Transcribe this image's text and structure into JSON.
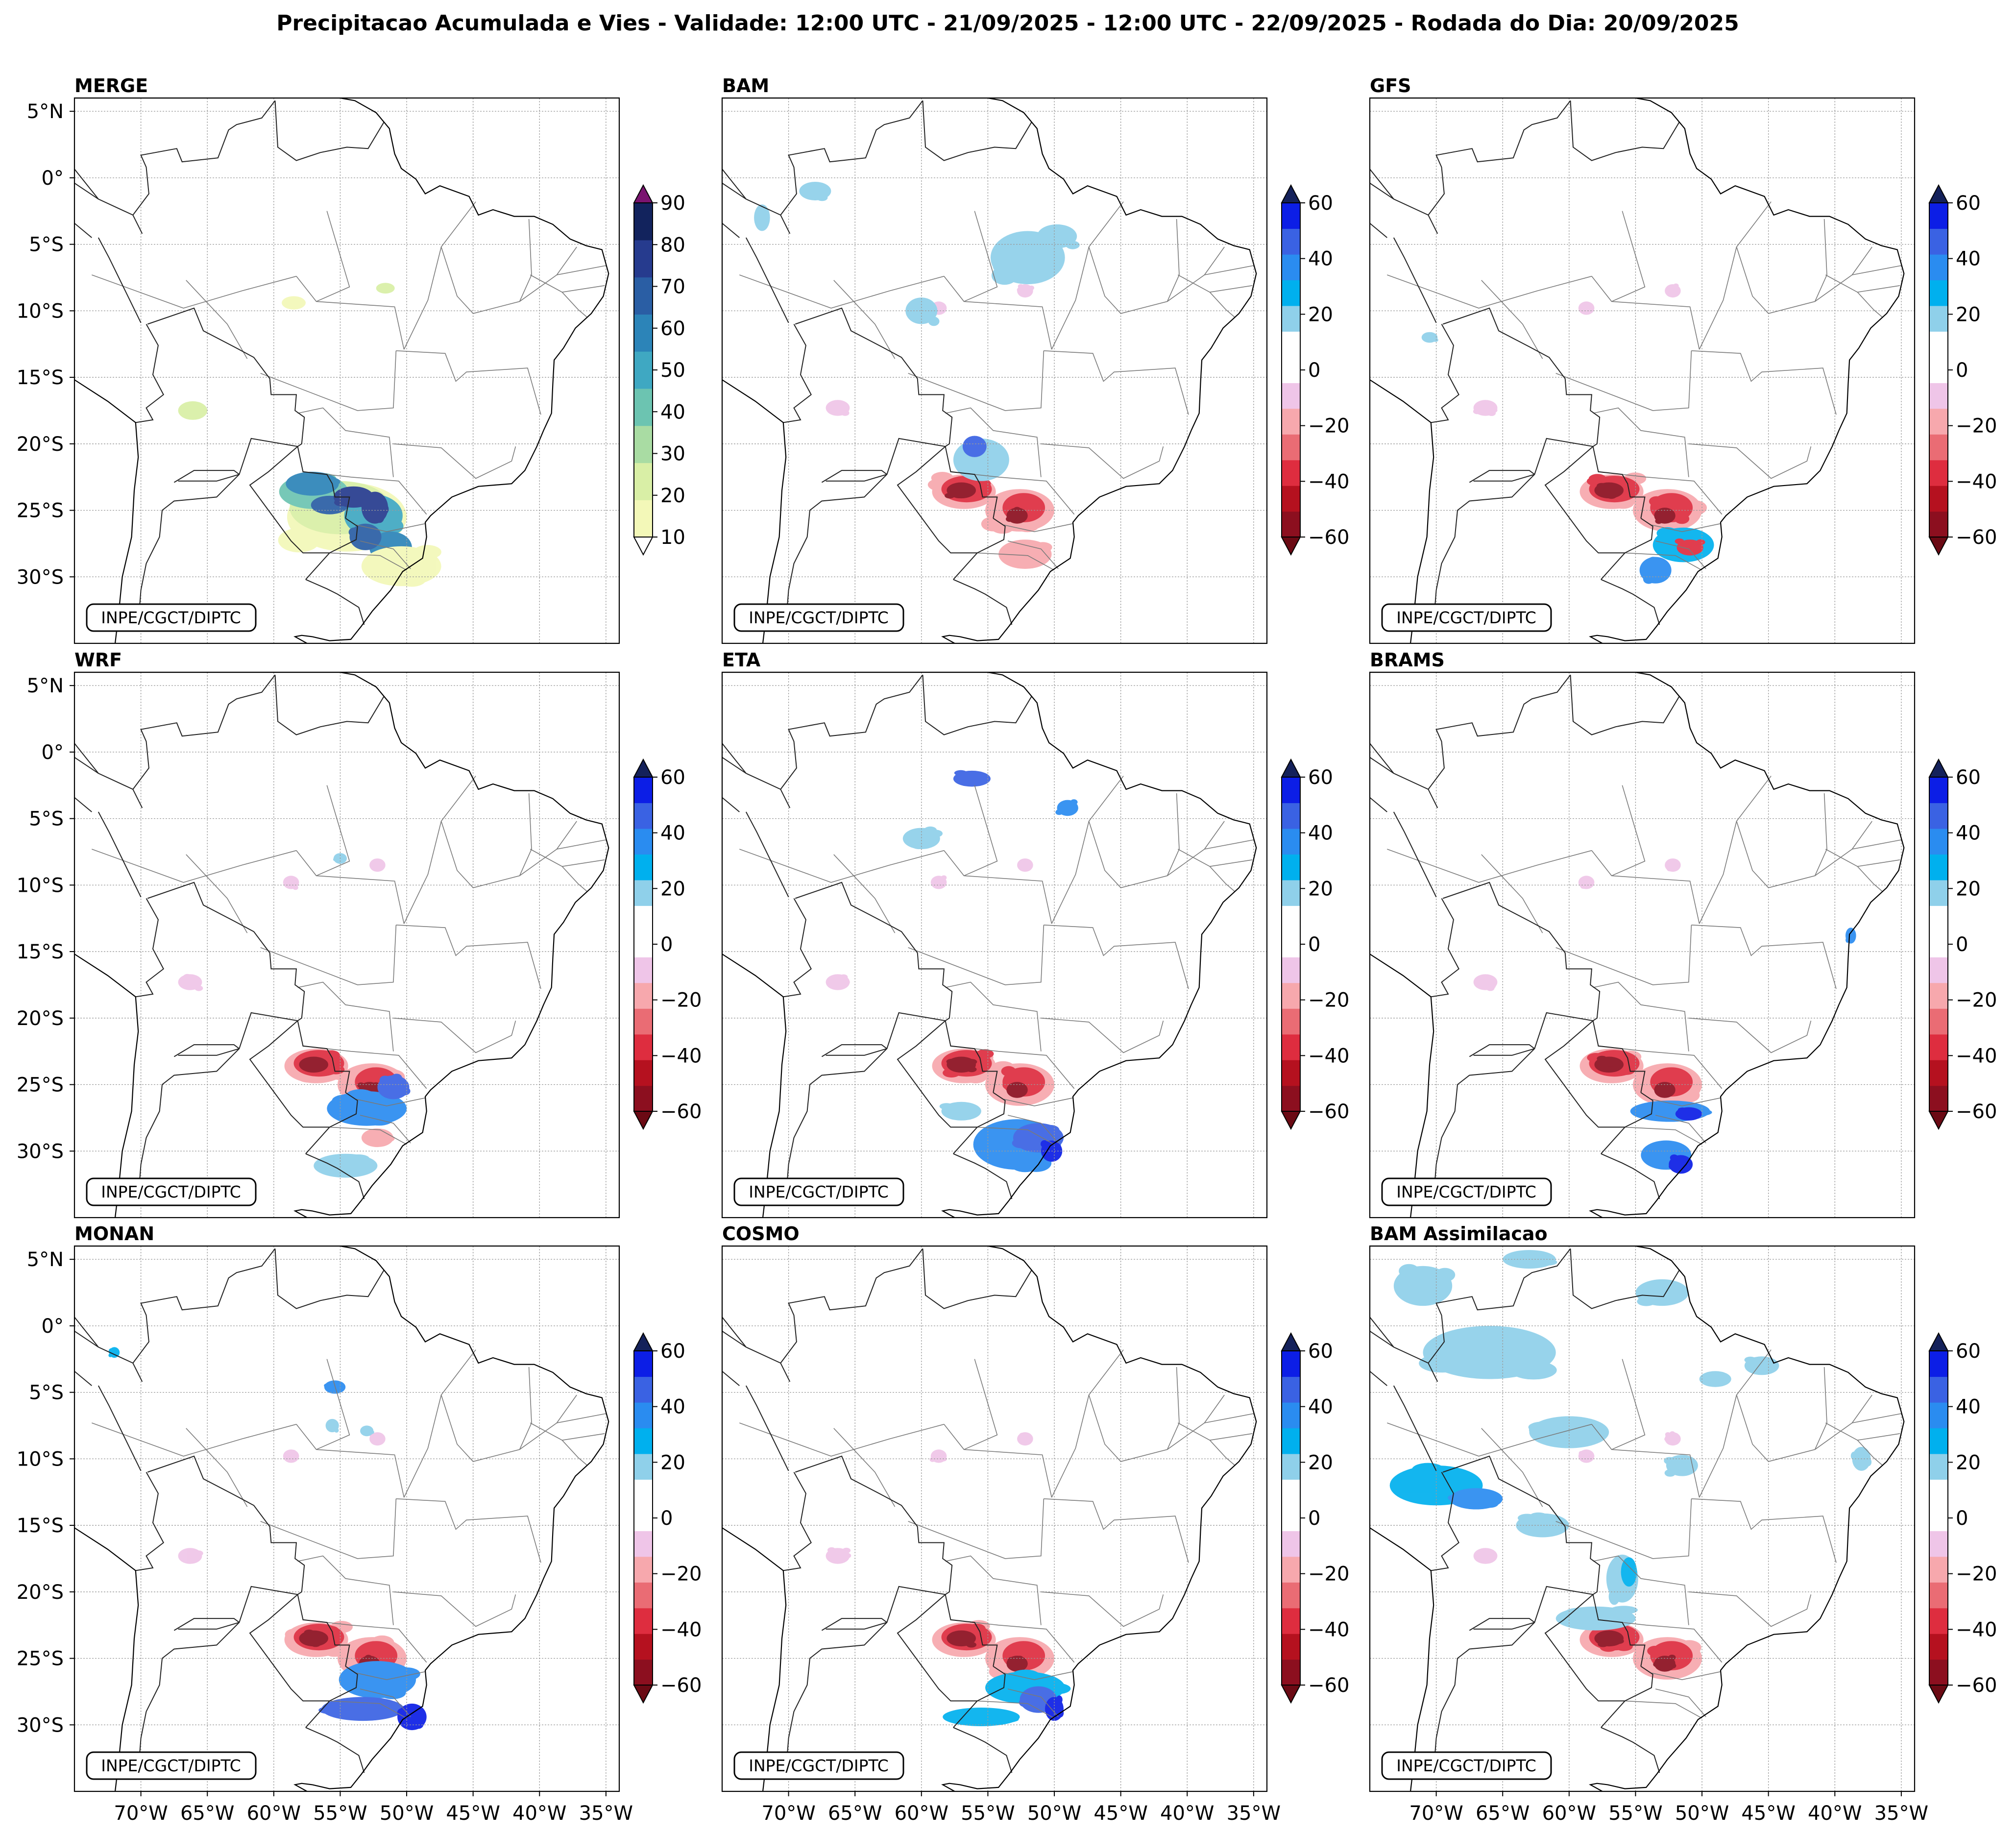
{
  "title": "Precipitacao Acumulada e Vies - Validade: 12:00 UTC - 21/09/2025 - 12:00 UTC - 22/09/2025 - Rodada do Dia: 20/09/2025",
  "panels": [
    {
      "name": "MERGE",
      "type": "precip",
      "credit": "INPE/CGCT/DIPTC"
    },
    {
      "name": "BAM",
      "type": "bias",
      "credit": "INPE/CGCT/DIPTC"
    },
    {
      "name": "GFS",
      "type": "bias",
      "credit": "INPE/CGCT/DIPTC"
    },
    {
      "name": "WRF",
      "type": "bias",
      "credit": "INPE/CGCT/DIPTC"
    },
    {
      "name": "ETA",
      "type": "bias",
      "credit": "INPE/CGCT/DIPTC"
    },
    {
      "name": "BRAMS",
      "type": "bias",
      "credit": "INPE/CGCT/DIPTC"
    },
    {
      "name": "MONAN",
      "type": "bias",
      "credit": "INPE/CGCT/DIPTC"
    },
    {
      "name": "COSMO",
      "type": "bias",
      "credit": "INPE/CGCT/DIPTC"
    },
    {
      "name": "BAM Assimilacao",
      "type": "bias",
      "credit": "INPE/CGCT/DIPTC"
    }
  ],
  "latitude_labels": [
    "5°N",
    "0°",
    "5°S",
    "10°S",
    "15°S",
    "20°S",
    "25°S",
    "30°S"
  ],
  "latitude_values": [
    5,
    0,
    -5,
    -10,
    -15,
    -20,
    -25,
    -30
  ],
  "longitude_labels": [
    "70°W",
    "65°W",
    "60°W",
    "55°W",
    "50°W",
    "45°W",
    "40°W",
    "35°W"
  ],
  "longitude_values": [
    -70,
    -65,
    -60,
    -55,
    -50,
    -45,
    -40,
    -35
  ],
  "map_extent": {
    "lon": [
      -75,
      -34
    ],
    "lat": [
      -35,
      6
    ]
  },
  "precip_colorbar": {
    "ticks": [
      "90",
      "80",
      "70",
      "60",
      "50",
      "40",
      "30",
      "20",
      "10"
    ],
    "tick_values": [
      90,
      80,
      70,
      60,
      50,
      40,
      30,
      20,
      10
    ],
    "levels": [
      10,
      20,
      30,
      40,
      50,
      60,
      70,
      80,
      90
    ],
    "colors": [
      "#f3f8b8",
      "#d9efa6",
      "#a9dca3",
      "#6cc4b1",
      "#3fa8c2",
      "#2c84b8",
      "#2a5ea4",
      "#263b8e",
      "#12235d"
    ],
    "over_color": "#7a1470",
    "under_color": "#ffffff"
  },
  "bias_colorbar": {
    "ticks": [
      "60",
      "40",
      "20",
      "0",
      "−20",
      "−40",
      "−60"
    ],
    "tick_values": [
      60,
      40,
      20,
      0,
      -20,
      -40,
      -60
    ],
    "colors": [
      "#8c0f1f",
      "#b5111f",
      "#de2d3f",
      "#ea6c74",
      "#f7a8ad",
      "#efc5e8",
      "#ffffff",
      "#ffffff",
      "#8fd0ea",
      "#00b0ee",
      "#2a8cf0",
      "#3a62e3",
      "#0c1ee6"
    ],
    "over_color": "#14215a",
    "under_color": "#6b0a14"
  }
}
